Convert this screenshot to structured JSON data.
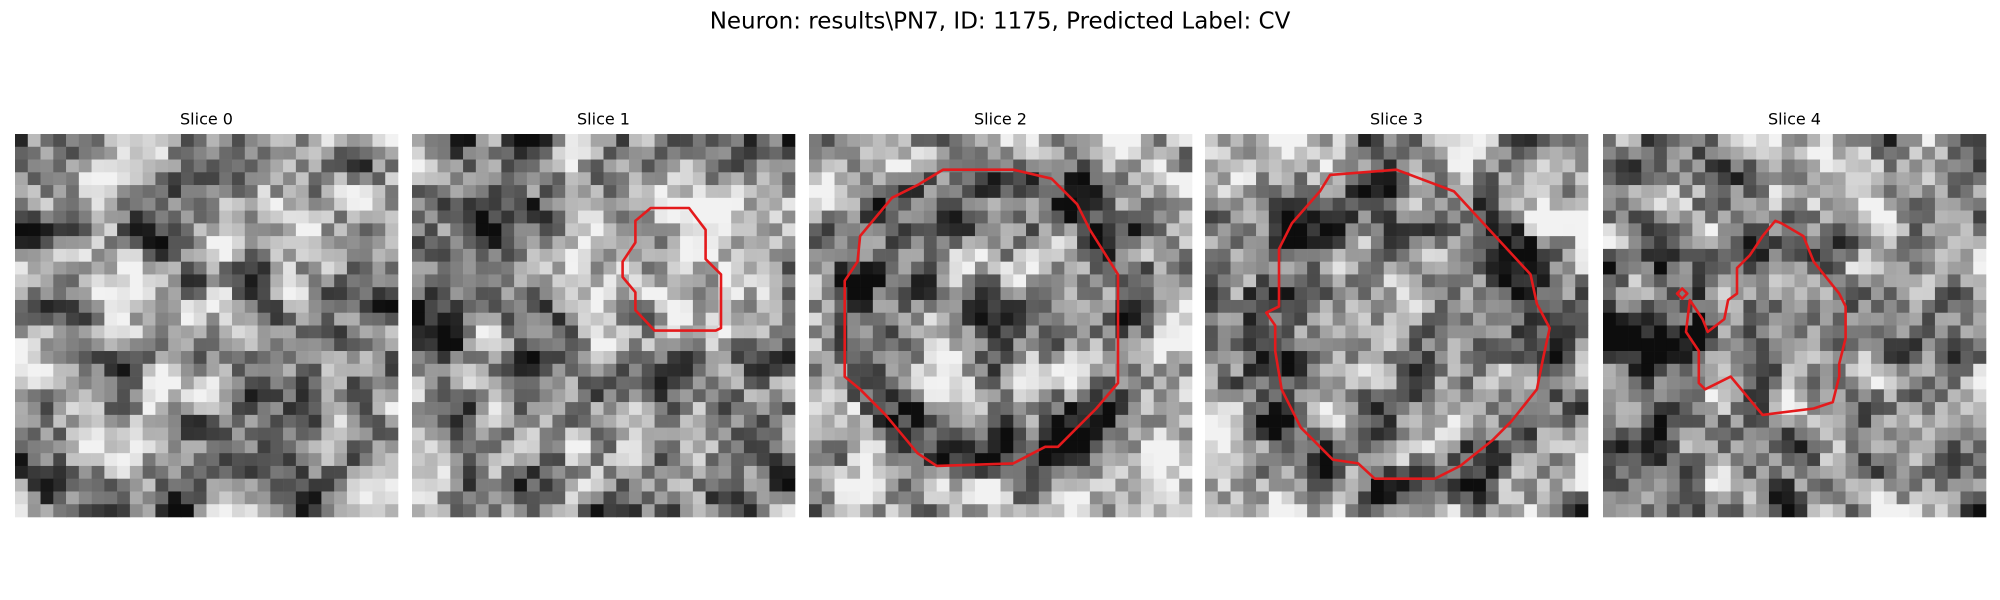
{
  "title": "Neuron: results\\PN7, ID: 1175, Predicted Label: CV",
  "panels": [
    {
      "title": "Slice 0"
    },
    {
      "title": "Slice 1"
    },
    {
      "title": "Slice 2"
    },
    {
      "title": "Slice 3"
    },
    {
      "title": "Slice 4"
    }
  ]
}
